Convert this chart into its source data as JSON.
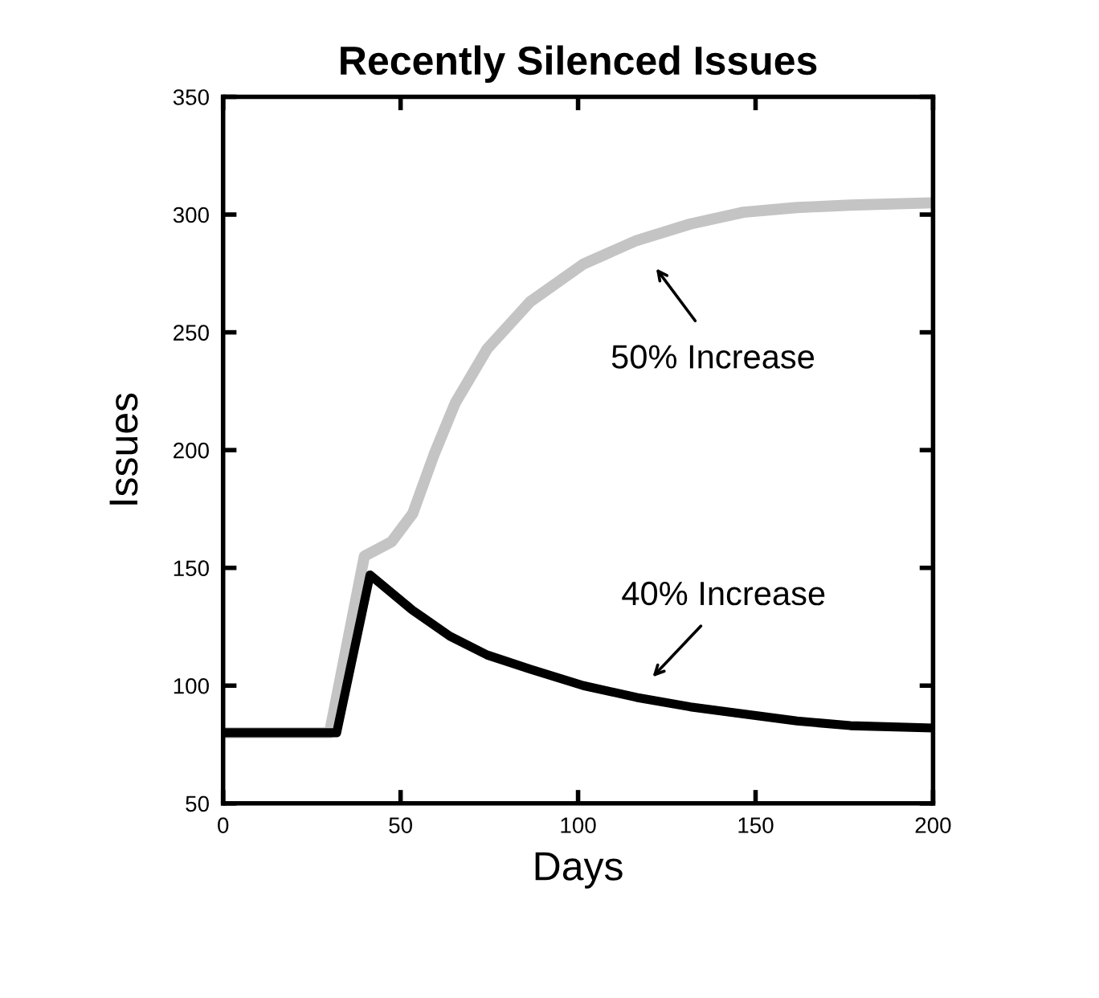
{
  "chart_data": {
    "type": "line",
    "title": "Recently Silenced Issues",
    "xlabel": "Days",
    "ylabel": "Issues",
    "xlim": [
      0,
      200
    ],
    "xticks": [
      0,
      50,
      100,
      150,
      200
    ],
    "ylim": [
      50,
      350
    ],
    "yticks": [
      50,
      100,
      150,
      200,
      250,
      300,
      350
    ],
    "grid": false,
    "legend": false,
    "marker": "none",
    "line_style": "solid",
    "series": [
      {
        "color": "#c4c4c4",
        "x": [
          0,
          30,
          39.8,
          47.4,
          53.4,
          59.4,
          65.4,
          74.4,
          86.5,
          101.5,
          116.5,
          131.6,
          146.6,
          161.7,
          176.7,
          200
        ],
        "values": [
          80,
          80,
          155,
          161,
          173,
          198,
          220,
          243,
          263,
          279,
          289,
          296,
          301,
          303,
          304,
          305
        ]
      },
      {
        "color": "#000000",
        "x": [
          0,
          32,
          41.4,
          53.4,
          63.9,
          74.4,
          86.5,
          101.5,
          116.5,
          131.6,
          146.6,
          161.7,
          176.7,
          200
        ],
        "values": [
          80,
          80,
          147,
          132,
          121,
          113,
          107,
          100,
          95,
          91,
          88,
          85,
          83,
          82
        ]
      }
    ],
    "annotations": [
      "50% Increase",
      "40% Increase"
    ]
  }
}
